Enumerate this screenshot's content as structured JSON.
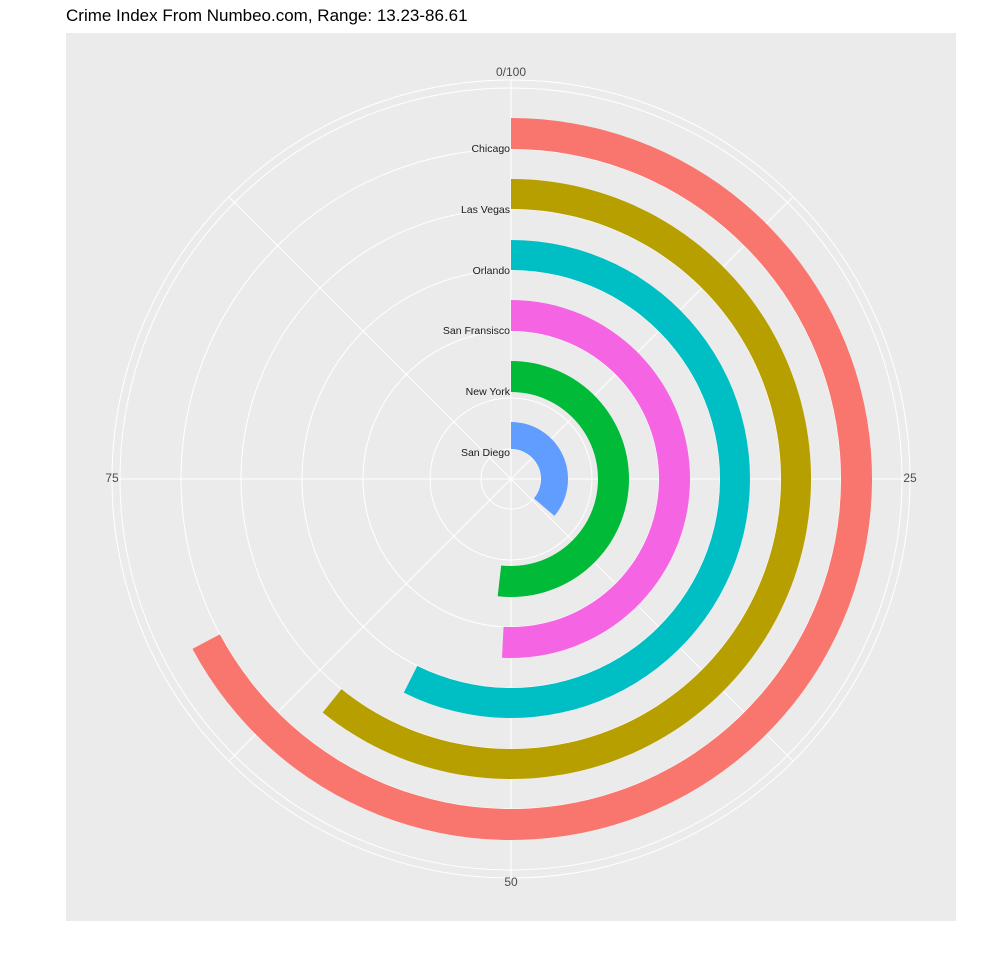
{
  "chart_data": {
    "type": "bar",
    "coord": "polar",
    "title": "Crime Index From Numbeo.com, Range: 13.23-86.61",
    "angle_axis": {
      "min": 0,
      "max": 100,
      "ticks": [
        "0/100",
        "25",
        "50",
        "75"
      ],
      "tick_values": [
        0,
        25,
        50,
        75
      ]
    },
    "categories": [
      "San Diego",
      "New York",
      "San Fransisco",
      "Orlando",
      "Las Vegas",
      "Chicago"
    ],
    "values": [
      36.2,
      51.8,
      50.8,
      57.4,
      60.8,
      67.2
    ],
    "colors": [
      "#619CFF",
      "#00BA38",
      "#F564E3",
      "#00BFC4",
      "#B79F00",
      "#F8766D"
    ],
    "panel_background": "#EBEBEB",
    "grid_color": "#FFFFFF",
    "grid": true,
    "legend": "none"
  }
}
